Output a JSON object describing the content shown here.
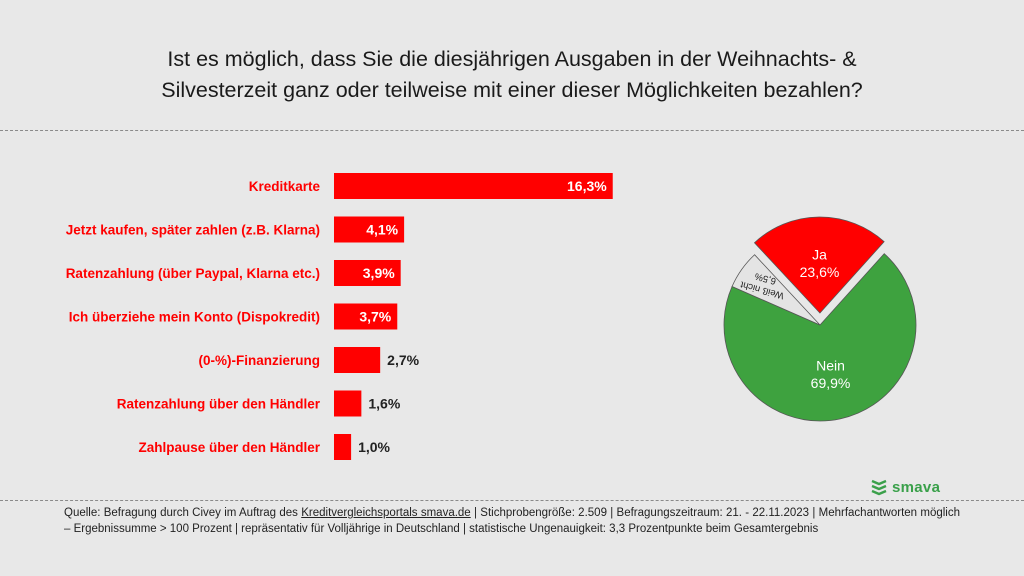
{
  "title_line1": "Ist es möglich, dass Sie die diesjährigen Ausgaben in der Weihnachts- &",
  "title_line2": "Silvesterzeit ganz oder teilweise mit einer dieser Möglichkeiten bezahlen?",
  "brand": "smava",
  "colors": {
    "accent": "#ff0000",
    "green": "#3ea23f",
    "grey": "#e4e4e4",
    "background": "#e8e8e8"
  },
  "source": {
    "part1": "Quelle: Befragung durch Civey im Auftrag des ",
    "link": "Kreditvergleichsportals smava.de",
    "part2": " | Stichprobengröße: 2.509 | Befragungszeitraum: 21. - 22.11.2023 | Mehrfachantworten möglich – Ergebnissumme > 100 Prozent | repräsentativ für Volljährige in Deutschland | statistische Ungenauigkeit: 3,3 Prozentpunkte beim Gesamtergebnis"
  },
  "chart_data": [
    {
      "type": "bar",
      "orientation": "horizontal",
      "categories": [
        "Kreditkarte",
        "Jetzt kaufen, später zahlen (z.B. Klarna)",
        "Ratenzahlung (über Paypal, Klarna etc.)",
        "Ich überziehe mein Konto (Dispokredit)",
        "(0-%)-Finanzierung",
        "Ratenzahlung über den Händler",
        "Zahlpause über den Händler"
      ],
      "values": [
        16.3,
        4.1,
        3.9,
        3.7,
        2.7,
        1.6,
        1.0
      ],
      "labels": [
        "16,3%",
        "4,1%",
        "3,9%",
        "3,7%",
        "2,7%",
        "1,6%",
        "1,0%"
      ],
      "color": "#ff0000"
    },
    {
      "type": "pie",
      "slices": [
        {
          "label": "Nein",
          "value": 69.9,
          "value_label": "69,9%",
          "color": "#3ea23f"
        },
        {
          "label": "Weiß nicht",
          "value": 6.5,
          "value_label": "6,5%",
          "color": "#e4e4e4"
        },
        {
          "label": "Ja",
          "value": 23.6,
          "value_label": "23,6%",
          "color": "#ff0000",
          "exploded": true
        }
      ]
    }
  ]
}
